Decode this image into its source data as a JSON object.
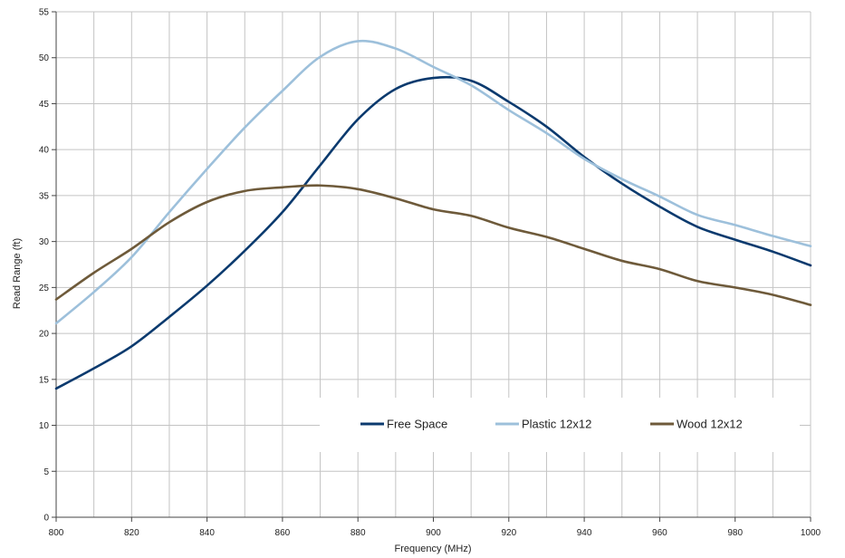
{
  "chart_data": {
    "type": "line",
    "title": "",
    "xlabel": "Frequency (MHz)",
    "ylabel": "Read Range (ft)",
    "xlim": [
      800,
      1000
    ],
    "ylim": [
      0,
      55
    ],
    "xticks": [
      800,
      820,
      840,
      860,
      880,
      900,
      920,
      940,
      960,
      980,
      1000
    ],
    "yticks": [
      0,
      5,
      10,
      15,
      20,
      25,
      30,
      35,
      40,
      45,
      50,
      55
    ],
    "x_minor_grid_step": 10,
    "grid": true,
    "legend_position": "bottom-center, inside plot",
    "series": [
      {
        "name": "Free Space",
        "color": "#0b3a6e",
        "x": [
          800,
          810,
          820,
          830,
          840,
          850,
          860,
          870,
          880,
          890,
          900,
          910,
          920,
          930,
          940,
          950,
          960,
          970,
          980,
          990,
          1000
        ],
        "values": [
          14.0,
          16.2,
          18.6,
          21.8,
          25.2,
          29.0,
          33.2,
          38.3,
          43.3,
          46.6,
          47.8,
          47.5,
          45.2,
          42.5,
          39.2,
          36.3,
          33.8,
          31.6,
          30.2,
          28.9,
          27.4
        ]
      },
      {
        "name": "Plastic 12x12",
        "color": "#9dc0db",
        "x": [
          800,
          810,
          820,
          830,
          840,
          850,
          860,
          870,
          880,
          890,
          900,
          910,
          920,
          930,
          940,
          950,
          960,
          970,
          980,
          990,
          1000
        ],
        "values": [
          21.1,
          24.5,
          28.3,
          33.2,
          37.9,
          42.4,
          46.4,
          50.1,
          51.8,
          51.0,
          49.0,
          47.0,
          44.3,
          41.8,
          39.0,
          36.8,
          34.9,
          32.9,
          31.8,
          30.6,
          29.5
        ]
      },
      {
        "name": "Wood 12x12",
        "color": "#6e5a3a",
        "x": [
          800,
          810,
          820,
          830,
          840,
          850,
          860,
          870,
          880,
          890,
          900,
          910,
          920,
          930,
          940,
          950,
          960,
          970,
          980,
          990,
          1000
        ],
        "values": [
          23.7,
          26.6,
          29.2,
          32.1,
          34.3,
          35.5,
          35.9,
          36.1,
          35.7,
          34.7,
          33.5,
          32.8,
          31.5,
          30.5,
          29.2,
          27.9,
          27.0,
          25.7,
          25.0,
          24.2,
          23.1
        ]
      }
    ]
  }
}
